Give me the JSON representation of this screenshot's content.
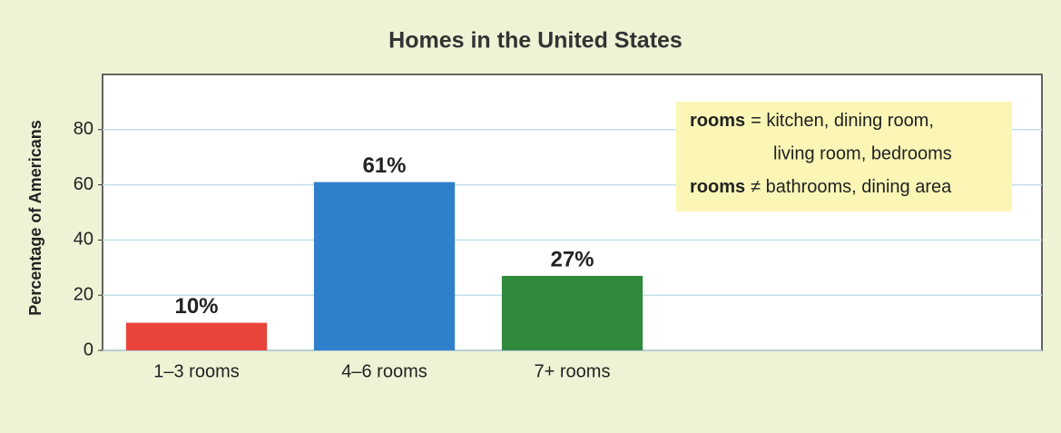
{
  "chart_data": {
    "type": "bar",
    "title": "Homes in the United States",
    "y_label": "Percentage of Americans",
    "categories": [
      "1–3 rooms",
      "4–6 rooms",
      "7+ rooms"
    ],
    "values": [
      10,
      61,
      27
    ],
    "value_labels": [
      "10%",
      "61%",
      "27%"
    ],
    "colors": [
      "#e8443c",
      "#2f80cc",
      "#2f8a3c"
    ],
    "ylim": [
      0,
      100
    ],
    "yticks": [
      0,
      20,
      40,
      60,
      80
    ],
    "grid": true,
    "annotation": [
      {
        "term": "rooms",
        "text": "= kitchen, dining room,"
      },
      {
        "text": "living room, bedrooms"
      },
      {
        "term": "rooms",
        "text": "≠ bathrooms, dining area"
      }
    ]
  }
}
